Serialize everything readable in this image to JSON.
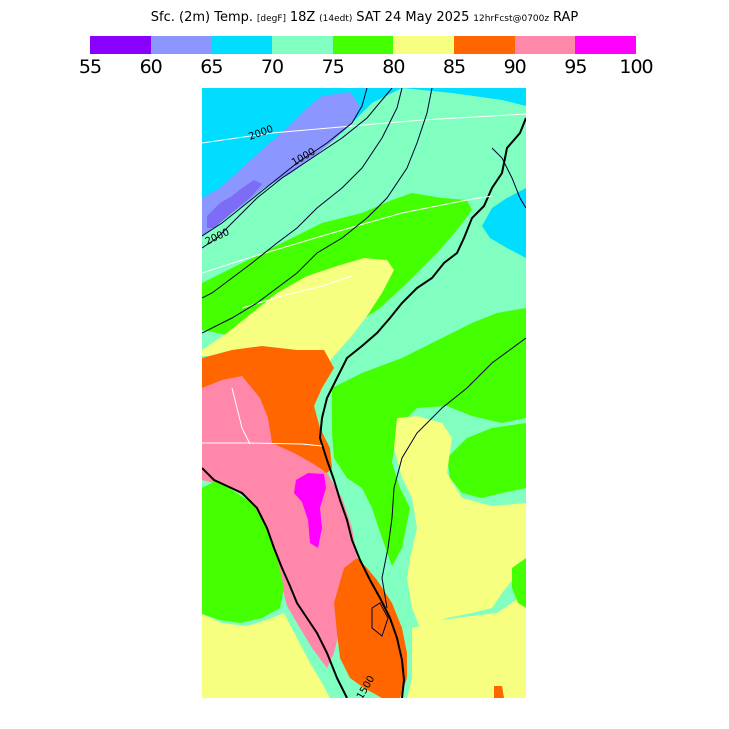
{
  "title": {
    "parts": [
      {
        "text": "Sfc. (2m) Temp.",
        "cls": "big"
      },
      {
        "text": "[degF]",
        "cls": "small"
      },
      {
        "text": "18Z",
        "cls": "big"
      },
      {
        "text": "(14edt)",
        "cls": "small"
      },
      {
        "text": "SAT 24 May 2025",
        "cls": "big"
      },
      {
        "text": "12hrFcst@0700z",
        "cls": "small"
      },
      {
        "text": "RAP",
        "cls": "big"
      }
    ]
  },
  "legend": {
    "labels": [
      "55",
      "60",
      "65",
      "70",
      "75",
      "80",
      "85",
      "90",
      "95",
      "100"
    ],
    "bins": [
      {
        "from": 55,
        "to": 60,
        "color": "#8a00ff"
      },
      {
        "from": 60,
        "to": 65,
        "color": "#8c96ff"
      },
      {
        "from": 65,
        "to": 70,
        "color": "#00ddff"
      },
      {
        "from": 70,
        "to": 75,
        "color": "#80ffc0"
      },
      {
        "from": 75,
        "to": 80,
        "color": "#44ff00"
      },
      {
        "from": 80,
        "to": 85,
        "color": "#f6ff80"
      },
      {
        "from": 85,
        "to": 90,
        "color": "#ff6600"
      },
      {
        "from": 90,
        "to": 95,
        "color": "#ff88aa"
      },
      {
        "from": 95,
        "to": 100,
        "color": "#ff00ff"
      }
    ]
  },
  "contours": {
    "labels": [
      "2000",
      "2000",
      "1000",
      "1500"
    ]
  },
  "colors": {
    "coast": "#000000",
    "border": "#ffffff"
  }
}
